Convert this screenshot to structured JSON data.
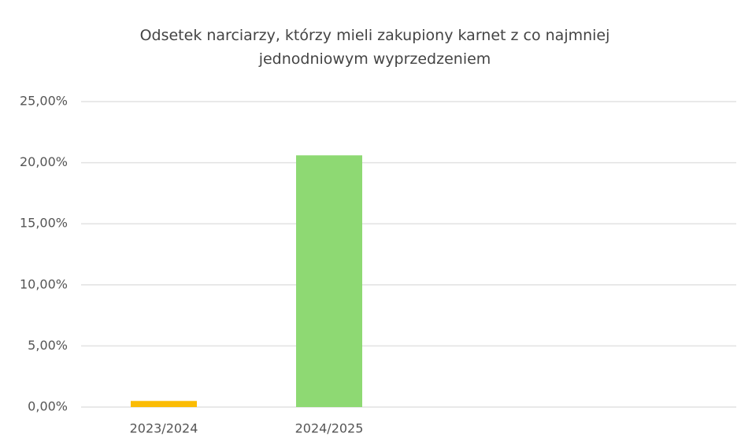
{
  "chart_data": {
    "type": "bar",
    "title": "Odsetek narciarzy, którzy mieli zakupiony karnet z co najmniej jednodniowym wyprzedzeniem",
    "categories": [
      "2023/2024",
      "2024/2025"
    ],
    "values": [
      0.5,
      20.6
    ],
    "colors": [
      "#fbbc04",
      "#8ed973"
    ],
    "ylim": [
      0,
      25
    ],
    "yticks": [
      {
        "value": 0,
        "label": "0,00%"
      },
      {
        "value": 5,
        "label": "5,00%"
      },
      {
        "value": 10,
        "label": "10,00%"
      },
      {
        "value": 15,
        "label": "15,00%"
      },
      {
        "value": 20,
        "label": "20,00%"
      },
      {
        "value": 25,
        "label": "25,00%"
      }
    ],
    "grid": true
  }
}
